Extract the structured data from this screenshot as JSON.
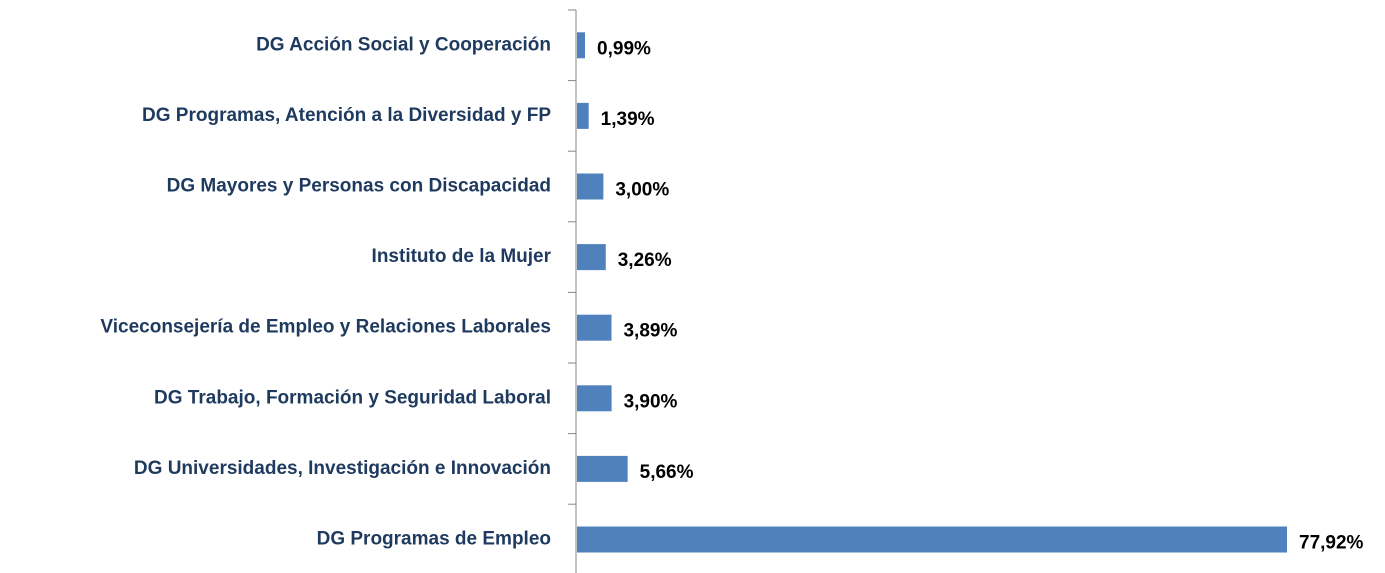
{
  "chart_data": {
    "type": "bar",
    "orientation": "horizontal",
    "categories": [
      "DG Acción Social y Cooperación",
      "DG Programas, Atención a la Diversidad y FP",
      "DG Mayores y Personas con Discapacidad",
      "Instituto de la Mujer",
      "Viceconsejería de Empleo y Relaciones Laborales",
      "DG Trabajo, Formación y Seguridad Laboral",
      "DG Universidades, Investigación e Innovación",
      "DG Programas de Empleo"
    ],
    "values": [
      0.99,
      1.39,
      3.0,
      3.26,
      3.89,
      3.9,
      5.66,
      77.92
    ],
    "value_labels": [
      "0,99%",
      "1,39%",
      "3,00%",
      "3,26%",
      "3,89%",
      "3,90%",
      "5,66%",
      "77,92%"
    ],
    "color": "#4f81bd"
  }
}
